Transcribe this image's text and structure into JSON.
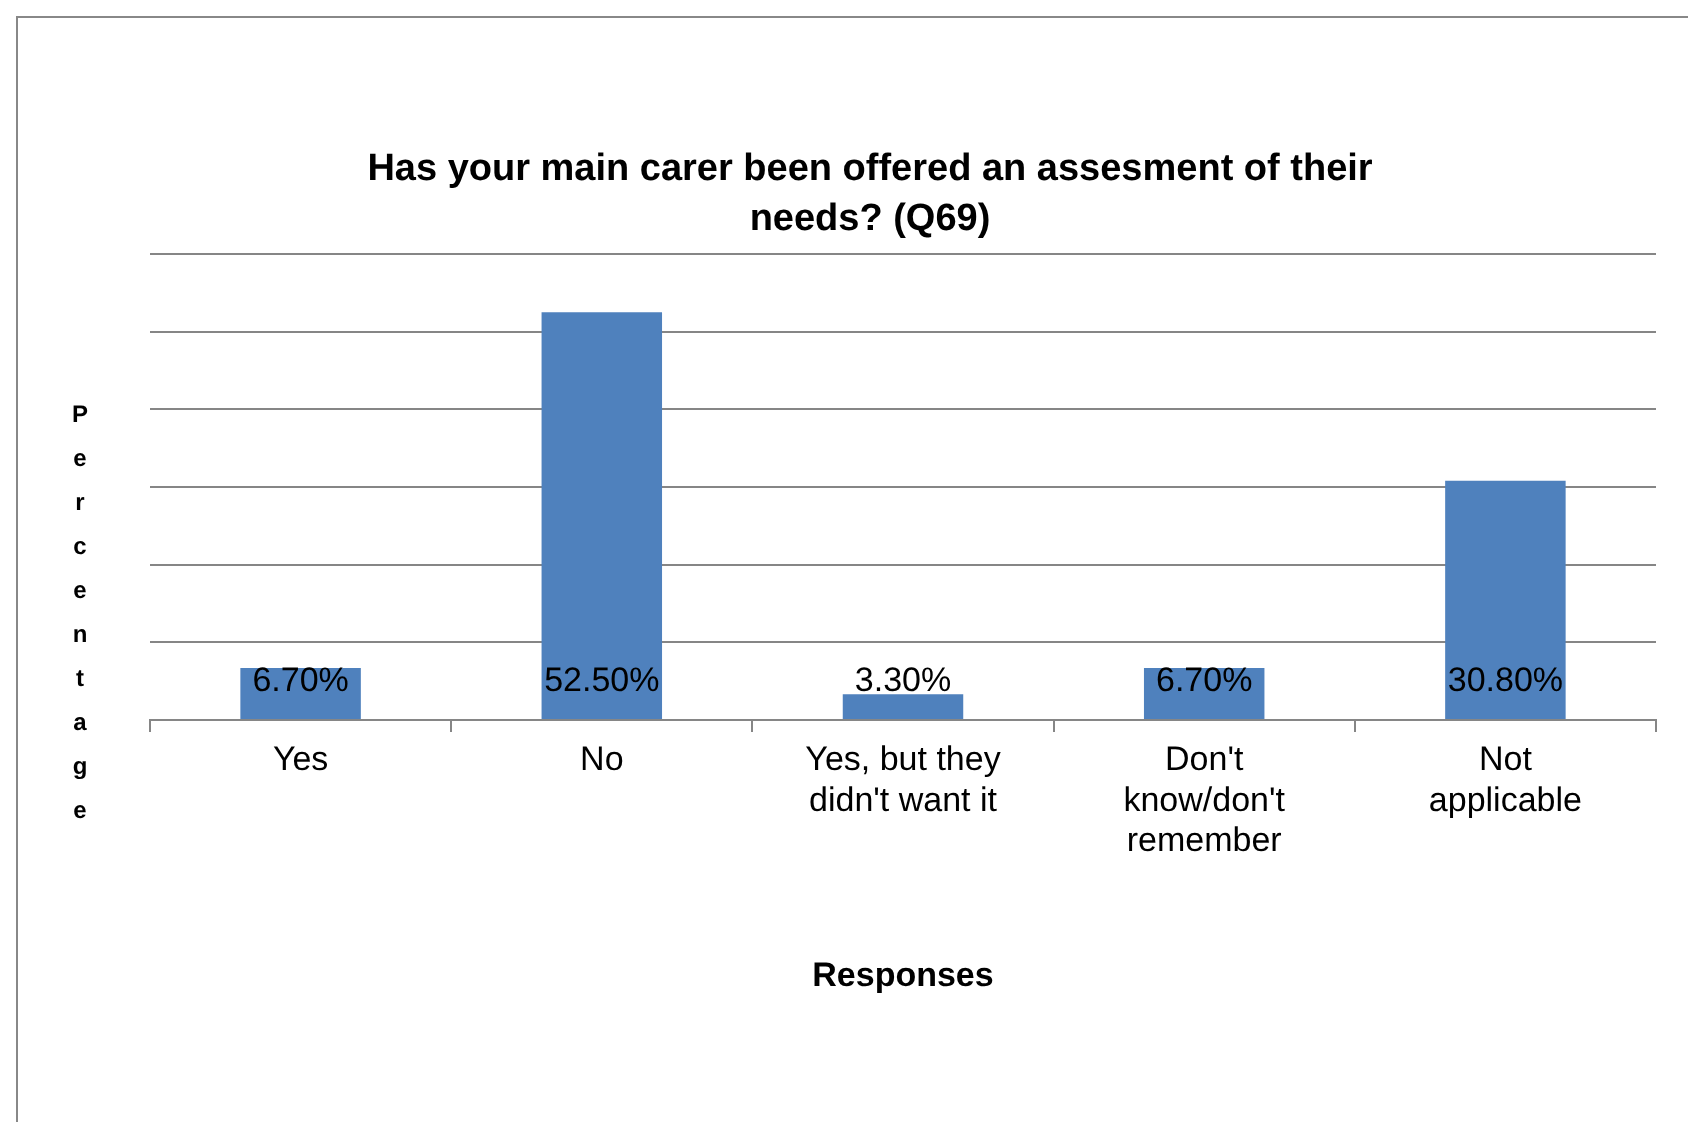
{
  "chart_data": {
    "type": "bar",
    "title": "Has your main carer been offered an assesment of their needs? (Q69)",
    "xlabel": "Responses",
    "ylabel": "Percentage",
    "categories": [
      "Yes",
      "No",
      "Yes, but they didn't want it",
      "Don't know/don't remember",
      "Not applicable"
    ],
    "values": [
      6.7,
      52.5,
      3.3,
      6.7,
      30.8
    ],
    "value_labels": [
      "6.70%",
      "52.50%",
      "3.30%",
      "6.70%",
      "30.80%"
    ],
    "color": "#4f81bd",
    "ylim": [
      0,
      60
    ],
    "yticks": [
      {
        "value": 0,
        "label": null
      },
      {
        "value": 10,
        "label": null
      },
      {
        "value": 20,
        "label": null
      },
      {
        "value": 30,
        "label": null
      },
      {
        "value": 40,
        "label": null
      },
      {
        "value": 50,
        "label": null
      },
      {
        "value": 60,
        "label": null
      }
    ],
    "grid": "y",
    "legend": false,
    "tick_labels": "x"
  }
}
